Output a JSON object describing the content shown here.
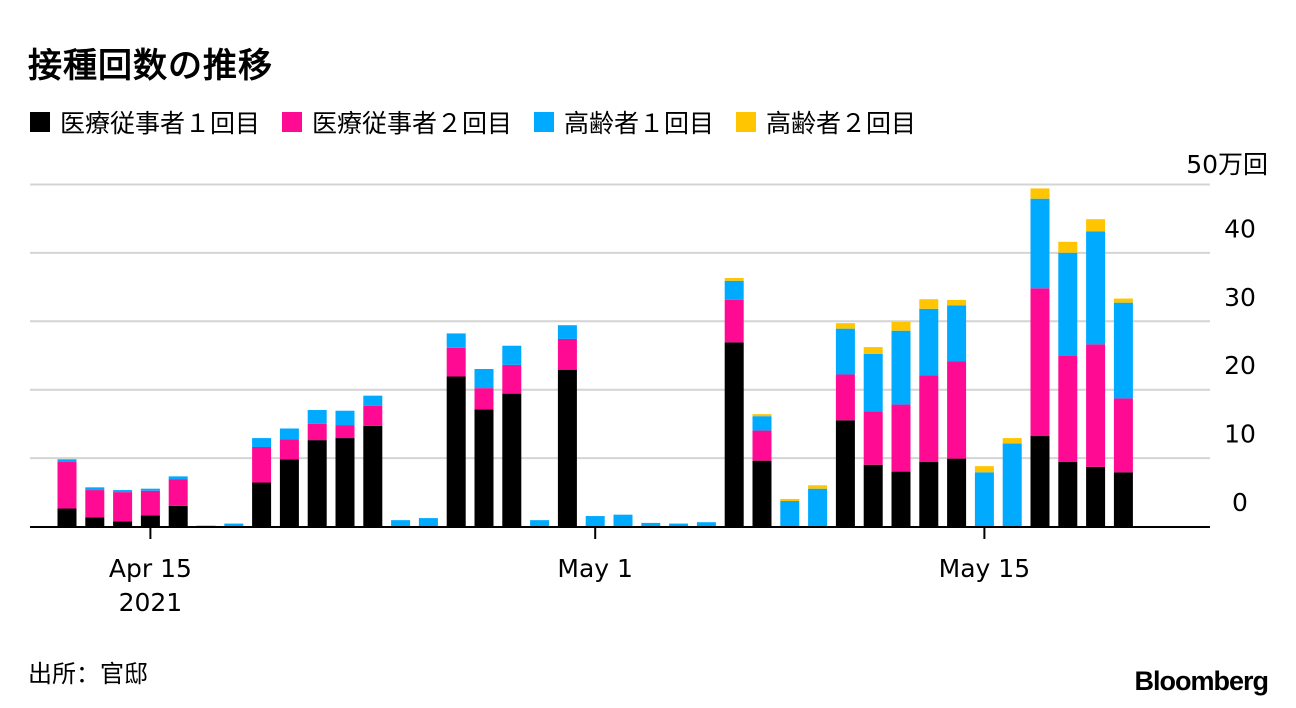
{
  "chart_data": {
    "type": "bar",
    "stacked": true,
    "title": "接種回数の推移",
    "unit_label": "50万回",
    "yticks": [
      0,
      10,
      20,
      30,
      40
    ],
    "ylim": [
      0,
      50
    ],
    "grid": true,
    "legend_position": "top",
    "x_start_date": "2021-04-12",
    "xticks": [
      {
        "index": 3,
        "label": "Apr 15",
        "sublabel": "2021"
      },
      {
        "index": 19,
        "label": "May 1",
        "sublabel": ""
      },
      {
        "index": 33,
        "label": "May 15",
        "sublabel": ""
      }
    ],
    "series": [
      {
        "name": "医療従事者１回目",
        "color": "#000000",
        "values": [
          2.7,
          1.4,
          0.8,
          1.7,
          3.1,
          0,
          0,
          6.5,
          9.9,
          12.7,
          13.0,
          14.8,
          0,
          0,
          22.0,
          17.2,
          19.5,
          0,
          23.0,
          0,
          0,
          0,
          0,
          0,
          27.0,
          9.7,
          0,
          0,
          15.6,
          9.1,
          8.1,
          9.5,
          10.0,
          0,
          0,
          13.3,
          9.5,
          8.8,
          8.0
        ]
      },
      {
        "name": "医療従事者２回目",
        "color": "#ff0a93",
        "values": [
          6.8,
          4.0,
          4.3,
          3.6,
          3.9,
          0,
          0,
          5.2,
          2.9,
          2.4,
          1.9,
          2.9,
          0,
          0,
          4.2,
          3.1,
          4.2,
          0,
          4.5,
          0,
          0,
          0,
          0,
          0,
          6.2,
          4.4,
          0,
          0,
          6.7,
          7.8,
          9.8,
          12.7,
          14.2,
          0,
          0,
          21.6,
          15.5,
          17.9,
          10.8
        ]
      },
      {
        "name": "高齢者１回目",
        "color": "#00aaff",
        "values": [
          0.4,
          0.4,
          0.3,
          0.3,
          0.4,
          0.2,
          0.5,
          1.3,
          1.6,
          2.0,
          2.1,
          1.5,
          1.0,
          1.3,
          2.1,
          2.8,
          2.8,
          1.0,
          2.0,
          1.6,
          1.8,
          0.6,
          0.5,
          0.7,
          2.8,
          2.1,
          3.8,
          5.6,
          6.7,
          8.4,
          10.8,
          9.7,
          8.2,
          8.0,
          12.2,
          13.1,
          15.1,
          16.5,
          14.0
        ]
      },
      {
        "name": "高齢者２回目",
        "color": "#ffc500",
        "values": [
          0,
          0,
          0,
          0,
          0,
          0,
          0,
          0,
          0,
          0,
          0,
          0,
          0,
          0,
          0,
          0,
          0,
          0,
          0,
          0,
          0,
          0,
          0,
          0,
          0.4,
          0.3,
          0.3,
          0.5,
          0.8,
          1.0,
          1.3,
          1.4,
          0.8,
          0.9,
          0.8,
          1.5,
          1.6,
          1.8,
          0.6
        ]
      }
    ]
  },
  "source_text": "出所：官邸",
  "brand": "Bloomberg"
}
